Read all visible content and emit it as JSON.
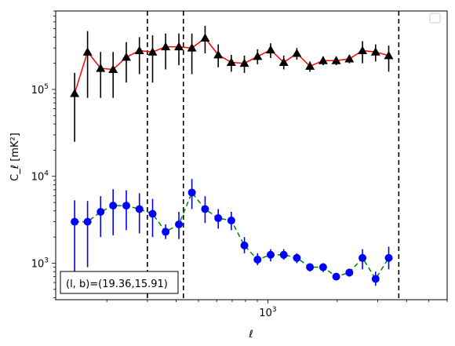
{
  "chart_data": {
    "type": "line",
    "title": "",
    "xlabel": "ℓ",
    "ylabel": "C_ℓ  [mK²]",
    "xscale": "log",
    "yscale": "log",
    "xlim": [
      120,
      6000
    ],
    "ylim": [
      380,
      800000
    ],
    "x_tick_labels": [
      {
        "value": 1000,
        "base": "10",
        "exp": "3"
      }
    ],
    "y_tick_labels": [
      {
        "value": 1000,
        "base": "10",
        "exp": "3"
      },
      {
        "value": 10000,
        "base": "10",
        "exp": "4"
      },
      {
        "value": 100000,
        "base": "10",
        "exp": "5"
      }
    ],
    "grid": false,
    "legend": {
      "placement": "top-right",
      "entries": []
    },
    "vlines": [
      300,
      430,
      3700
    ],
    "annotation": "(l, b)=(19.36,15.91)",
    "series": [
      {
        "color": "#ff0000",
        "marker": "triangle",
        "marker_color": "#000000",
        "linestyle": "solid",
        "errorbar_color": "#000000",
        "points": [
          {
            "x": 145,
            "y": 90000,
            "lo": 25000,
            "hi": 155000
          },
          {
            "x": 165,
            "y": 270000,
            "lo": 80000,
            "hi": 470000
          },
          {
            "x": 188,
            "y": 175000,
            "lo": 80000,
            "hi": 270000
          },
          {
            "x": 213,
            "y": 170000,
            "lo": 80000,
            "hi": 270000
          },
          {
            "x": 243,
            "y": 235000,
            "lo": 120000,
            "hi": 350000
          },
          {
            "x": 277,
            "y": 280000,
            "lo": 150000,
            "hi": 400000
          },
          {
            "x": 316,
            "y": 270000,
            "lo": 120000,
            "hi": 420000
          },
          {
            "x": 360,
            "y": 310000,
            "lo": 170000,
            "hi": 440000
          },
          {
            "x": 411,
            "y": 310000,
            "lo": 190000,
            "hi": 440000
          },
          {
            "x": 468,
            "y": 300000,
            "lo": 150000,
            "hi": 440000
          },
          {
            "x": 534,
            "y": 390000,
            "lo": 260000,
            "hi": 540000
          },
          {
            "x": 609,
            "y": 250000,
            "lo": 180000,
            "hi": 330000
          },
          {
            "x": 694,
            "y": 205000,
            "lo": 160000,
            "hi": 250000
          },
          {
            "x": 791,
            "y": 200000,
            "lo": 155000,
            "hi": 245000
          },
          {
            "x": 902,
            "y": 240000,
            "lo": 195000,
            "hi": 290000
          },
          {
            "x": 1028,
            "y": 285000,
            "lo": 230000,
            "hi": 340000
          },
          {
            "x": 1172,
            "y": 205000,
            "lo": 170000,
            "hi": 245000
          },
          {
            "x": 1336,
            "y": 260000,
            "lo": 220000,
            "hi": 300000
          },
          {
            "x": 1523,
            "y": 185000,
            "lo": 160000,
            "hi": 210000
          },
          {
            "x": 1737,
            "y": 215000,
            "lo": 190000,
            "hi": 240000
          },
          {
            "x": 1980,
            "y": 215000,
            "lo": 190000,
            "hi": 240000
          },
          {
            "x": 2258,
            "y": 225000,
            "lo": 200000,
            "hi": 250000
          },
          {
            "x": 2574,
            "y": 280000,
            "lo": 200000,
            "hi": 360000
          },
          {
            "x": 2935,
            "y": 270000,
            "lo": 210000,
            "hi": 330000
          },
          {
            "x": 3346,
            "y": 245000,
            "lo": 160000,
            "hi": 320000
          }
        ]
      },
      {
        "color": "#008000",
        "marker": "circle",
        "marker_color": "#0000ff",
        "linestyle": "dashed",
        "errorbar_color": "#0000ff",
        "points": [
          {
            "x": 145,
            "y": 3000,
            "lo": 800,
            "hi": 5300
          },
          {
            "x": 165,
            "y": 3000,
            "lo": 900,
            "hi": 5200
          },
          {
            "x": 188,
            "y": 3900,
            "lo": 2000,
            "hi": 5900
          },
          {
            "x": 213,
            "y": 4600,
            "lo": 2100,
            "hi": 7100
          },
          {
            "x": 243,
            "y": 4600,
            "lo": 2400,
            "hi": 6900
          },
          {
            "x": 277,
            "y": 4200,
            "lo": 2200,
            "hi": 6400
          },
          {
            "x": 316,
            "y": 3700,
            "lo": 2000,
            "hi": 5500
          },
          {
            "x": 360,
            "y": 2300,
            "lo": 1900,
            "hi": 2800
          },
          {
            "x": 411,
            "y": 2800,
            "lo": 1900,
            "hi": 3900
          },
          {
            "x": 468,
            "y": 6500,
            "lo": 4200,
            "hi": 9300
          },
          {
            "x": 534,
            "y": 4200,
            "lo": 2900,
            "hi": 5900
          },
          {
            "x": 609,
            "y": 3300,
            "lo": 2500,
            "hi": 4200
          },
          {
            "x": 694,
            "y": 3100,
            "lo": 2400,
            "hi": 3900
          },
          {
            "x": 791,
            "y": 1600,
            "lo": 1300,
            "hi": 2000
          },
          {
            "x": 902,
            "y": 1100,
            "lo": 950,
            "hi": 1300
          },
          {
            "x": 1028,
            "y": 1250,
            "lo": 1050,
            "hi": 1450
          },
          {
            "x": 1172,
            "y": 1250,
            "lo": 1100,
            "hi": 1450
          },
          {
            "x": 1336,
            "y": 1150,
            "lo": 1000,
            "hi": 1300
          },
          {
            "x": 1523,
            "y": 900,
            "lo": 800,
            "hi": 1000
          },
          {
            "x": 1737,
            "y": 900,
            "lo": 790,
            "hi": 1000
          },
          {
            "x": 1980,
            "y": 700,
            "lo": 640,
            "hi": 760
          },
          {
            "x": 2258,
            "y": 780,
            "lo": 700,
            "hi": 860
          },
          {
            "x": 2574,
            "y": 1150,
            "lo": 850,
            "hi": 1450
          },
          {
            "x": 2935,
            "y": 660,
            "lo": 550,
            "hi": 800
          },
          {
            "x": 3346,
            "y": 1150,
            "lo": 850,
            "hi": 1550
          }
        ]
      }
    ]
  }
}
